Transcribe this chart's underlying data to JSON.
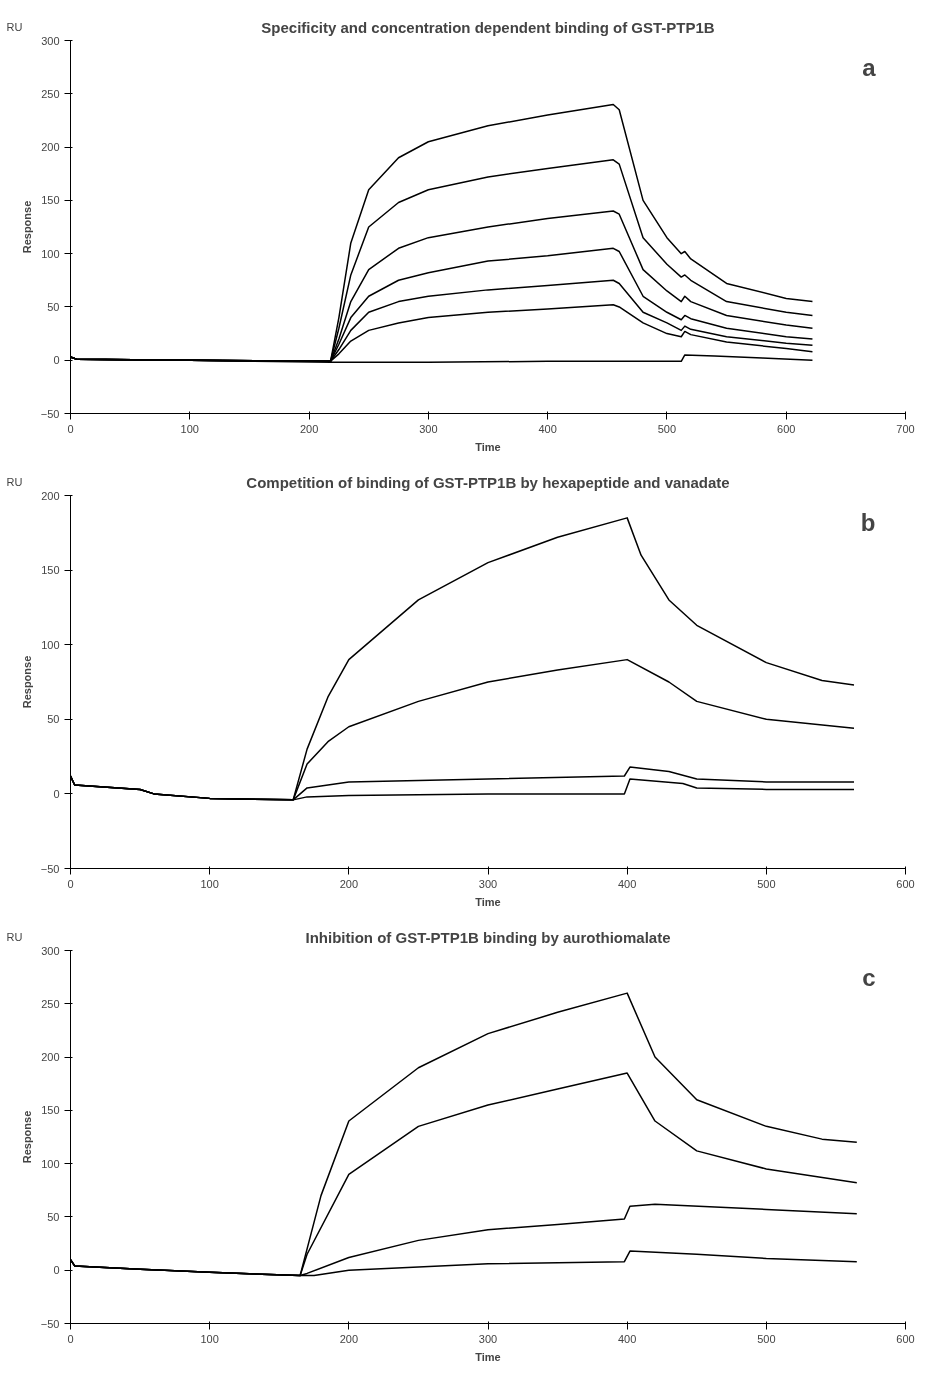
{
  "chart_data": [
    {
      "type": "line",
      "title": "Specificity and concentration dependent binding of GST-PTP1B",
      "xlabel": "Time",
      "ylabel": "Response",
      "annotations": [
        "RU",
        "a"
      ],
      "xlim": [
        0,
        700
      ],
      "xticks": [
        0,
        100,
        200,
        300,
        400,
        500,
        600,
        700
      ],
      "ylim": [
        -50,
        300
      ],
      "yticks": [
        -50,
        0,
        50,
        100,
        150,
        200,
        250,
        300
      ],
      "grid": false,
      "line_style": "solid",
      "series": [
        {
          "color": "#000000",
          "x": [
            0,
            5,
            100,
            218,
            225,
            235,
            250,
            275,
            300,
            350,
            400,
            455,
            460,
            480,
            500,
            512,
            515,
            520,
            550,
            600,
            622
          ],
          "values": [
            3,
            1,
            0,
            -1,
            40,
            110,
            160,
            190,
            205,
            220,
            230,
            240,
            235,
            150,
            115,
            100,
            102,
            95,
            72,
            58,
            55
          ]
        },
        {
          "color": "#000000",
          "x": [
            0,
            5,
            100,
            218,
            225,
            235,
            250,
            275,
            300,
            350,
            400,
            455,
            460,
            480,
            500,
            512,
            515,
            520,
            550,
            600,
            622
          ],
          "values": [
            3,
            1,
            0,
            -1,
            30,
            80,
            125,
            148,
            160,
            172,
            180,
            188,
            184,
            115,
            90,
            78,
            80,
            75,
            55,
            45,
            42
          ]
        },
        {
          "color": "#000000",
          "x": [
            0,
            5,
            100,
            218,
            225,
            235,
            250,
            275,
            300,
            350,
            400,
            455,
            460,
            480,
            500,
            512,
            515,
            520,
            550,
            600,
            622
          ],
          "values": [
            3,
            1,
            0,
            -1,
            20,
            55,
            85,
            105,
            115,
            125,
            133,
            140,
            137,
            85,
            65,
            55,
            60,
            55,
            42,
            33,
            30
          ]
        },
        {
          "color": "#000000",
          "x": [
            0,
            5,
            100,
            218,
            225,
            235,
            250,
            275,
            300,
            350,
            400,
            455,
            460,
            480,
            500,
            512,
            515,
            520,
            550,
            600,
            622
          ],
          "values": [
            3,
            1,
            0,
            -1,
            15,
            40,
            60,
            75,
            82,
            93,
            98,
            105,
            102,
            60,
            45,
            38,
            42,
            39,
            30,
            22,
            20
          ]
        },
        {
          "color": "#000000",
          "x": [
            0,
            5,
            100,
            218,
            225,
            235,
            250,
            275,
            300,
            350,
            400,
            455,
            460,
            480,
            500,
            512,
            515,
            520,
            550,
            600,
            622
          ],
          "values": [
            3,
            1,
            0,
            -1,
            10,
            28,
            45,
            55,
            60,
            66,
            70,
            75,
            72,
            45,
            35,
            28,
            32,
            29,
            22,
            16,
            14
          ]
        },
        {
          "color": "#000000",
          "x": [
            0,
            5,
            100,
            218,
            225,
            235,
            250,
            275,
            300,
            350,
            400,
            455,
            460,
            480,
            500,
            512,
            515,
            520,
            550,
            600,
            622
          ],
          "values": [
            3,
            1,
            0,
            -1,
            6,
            18,
            28,
            35,
            40,
            45,
            48,
            52,
            50,
            35,
            25,
            22,
            27,
            24,
            17,
            11,
            8
          ]
        },
        {
          "color": "#000000",
          "x": [
            0,
            5,
            100,
            218,
            300,
            400,
            512,
            515,
            540,
            580,
            622
          ],
          "values": [
            3,
            1,
            0,
            -2,
            -2,
            -1,
            -1,
            5,
            4,
            2,
            0
          ]
        }
      ]
    },
    {
      "type": "line",
      "title": "Competition of binding of GST-PTP1B by hexapeptide and vanadate",
      "xlabel": "Time",
      "ylabel": "Response",
      "annotations": [
        "RU",
        "b"
      ],
      "xlim": [
        0,
        600
      ],
      "xticks": [
        0,
        100,
        200,
        300,
        400,
        500,
        600
      ],
      "ylim": [
        -50,
        200
      ],
      "yticks": [
        -50,
        0,
        50,
        100,
        150,
        200
      ],
      "grid": false,
      "line_style": "solid",
      "series": [
        {
          "color": "#000000",
          "x": [
            0,
            3,
            50,
            60,
            100,
            160,
            170,
            185,
            200,
            250,
            300,
            350,
            400,
            410,
            430,
            450,
            500,
            540,
            563
          ],
          "values": [
            12,
            6,
            3,
            0,
            -3,
            -4,
            30,
            65,
            90,
            130,
            155,
            172,
            185,
            160,
            130,
            113,
            88,
            76,
            73
          ]
        },
        {
          "color": "#000000",
          "x": [
            0,
            3,
            50,
            60,
            100,
            160,
            170,
            185,
            200,
            250,
            300,
            350,
            400,
            430,
            450,
            500,
            563
          ],
          "values": [
            12,
            6,
            3,
            0,
            -3,
            -4,
            20,
            35,
            45,
            62,
            75,
            83,
            90,
            75,
            62,
            50,
            44
          ]
        },
        {
          "color": "#000000",
          "x": [
            0,
            3,
            50,
            60,
            100,
            160,
            170,
            200,
            300,
            398,
            402,
            430,
            450,
            500,
            563
          ],
          "values": [
            12,
            6,
            3,
            0,
            -3,
            -4,
            4,
            8,
            10,
            12,
            18,
            15,
            10,
            8,
            8
          ]
        },
        {
          "color": "#000000",
          "x": [
            0,
            3,
            50,
            60,
            100,
            160,
            170,
            200,
            300,
            398,
            402,
            440,
            450,
            500,
            563
          ],
          "values": [
            12,
            6,
            3,
            0,
            -3,
            -4,
            -2,
            -1,
            0,
            0,
            10,
            7,
            4,
            3,
            3
          ]
        }
      ]
    },
    {
      "type": "line",
      "title": "Inhibition of GST-PTP1B binding by aurothiomalate",
      "xlabel": "Time",
      "ylabel": "Response",
      "annotations": [
        "RU",
        "c"
      ],
      "xlim": [
        0,
        600
      ],
      "xticks": [
        0,
        100,
        200,
        300,
        400,
        500,
        600
      ],
      "ylim": [
        -50,
        300
      ],
      "yticks": [
        -50,
        0,
        50,
        100,
        150,
        200,
        250,
        300
      ],
      "grid": false,
      "line_style": "solid",
      "series": [
        {
          "color": "#000000",
          "x": [
            0,
            3,
            50,
            100,
            165,
            170,
            180,
            200,
            250,
            300,
            350,
            400,
            420,
            450,
            500,
            540,
            565
          ],
          "values": [
            10,
            4,
            1,
            -2,
            -5,
            20,
            70,
            140,
            190,
            222,
            242,
            260,
            200,
            160,
            135,
            123,
            120
          ]
        },
        {
          "color": "#000000",
          "x": [
            0,
            3,
            50,
            100,
            165,
            170,
            200,
            250,
            300,
            350,
            400,
            420,
            450,
            500,
            565
          ],
          "values": [
            10,
            4,
            1,
            -2,
            -5,
            15,
            90,
            135,
            155,
            170,
            185,
            140,
            112,
            95,
            82
          ]
        },
        {
          "color": "#000000",
          "x": [
            0,
            3,
            50,
            100,
            165,
            170,
            200,
            250,
            300,
            350,
            398,
            402,
            420,
            500,
            565
          ],
          "values": [
            10,
            4,
            1,
            -2,
            -5,
            -3,
            12,
            28,
            38,
            43,
            48,
            60,
            62,
            57,
            53
          ]
        },
        {
          "color": "#000000",
          "x": [
            0,
            3,
            50,
            100,
            165,
            175,
            200,
            300,
            398,
            402,
            450,
            500,
            565
          ],
          "values": [
            10,
            4,
            1,
            -2,
            -5,
            -5,
            0,
            6,
            8,
            18,
            15,
            11,
            8
          ]
        }
      ]
    }
  ]
}
